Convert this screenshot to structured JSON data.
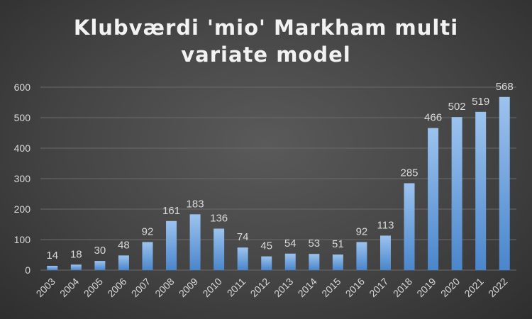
{
  "chart_data": {
    "type": "bar",
    "title_lines": [
      "Klubværdi 'mio' Markham multi",
      "variate model"
    ],
    "categories": [
      "2003",
      "2004",
      "2005",
      "2006",
      "2007",
      "2008",
      "2009",
      "2010",
      "2011",
      "2012",
      "2013",
      "2014",
      "2015",
      "2016",
      "2017",
      "2018",
      "2019",
      "2020",
      "2021",
      "2022"
    ],
    "values": [
      14,
      18,
      30,
      48,
      92,
      161,
      183,
      136,
      74,
      45,
      54,
      53,
      51,
      92,
      113,
      285,
      466,
      502,
      519,
      568
    ],
    "ylim": [
      0,
      600
    ],
    "yticks": [
      0,
      100,
      200,
      300,
      400,
      500,
      600
    ],
    "grid": true,
    "legend": "none",
    "data_labels": true,
    "colors": {
      "bar_top": "#9cc3ee",
      "bar_bottom": "#4a86cc",
      "text": "#d9d9d9",
      "grid": "#6a6a6a"
    }
  }
}
